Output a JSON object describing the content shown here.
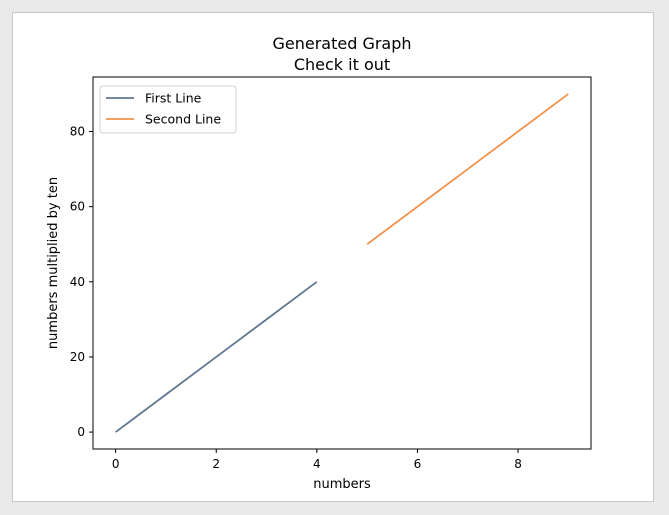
{
  "chart_data": {
    "type": "line",
    "title": "Generated Graph",
    "subtitle": "Check it out",
    "xlabel": "numbers",
    "ylabel": "numbers multiplied by ten",
    "xlim": [
      -0.45,
      9.45
    ],
    "ylim": [
      -4.5,
      94.5
    ],
    "xticks": [
      0,
      2,
      4,
      6,
      8
    ],
    "yticks": [
      0,
      20,
      40,
      60,
      80
    ],
    "grid": false,
    "legend_position": "top-left",
    "series": [
      {
        "name": "First Line",
        "color": "#5f7891",
        "x": [
          0,
          1,
          2,
          3,
          4
        ],
        "y": [
          0,
          10,
          20,
          30,
          40
        ]
      },
      {
        "name": "Second Line",
        "color": "#f0924d",
        "x": [
          5,
          6,
          7,
          8,
          9
        ],
        "y": [
          50,
          60,
          70,
          80,
          90
        ]
      }
    ]
  }
}
